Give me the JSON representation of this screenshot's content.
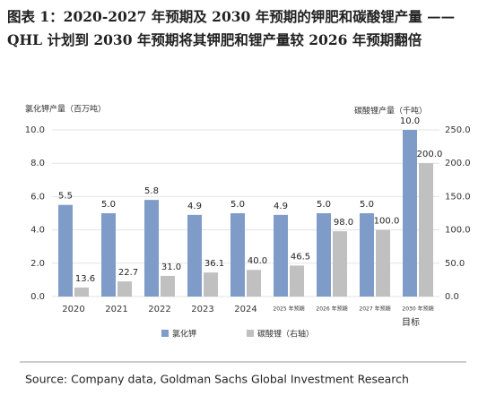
{
  "chart_data": {
    "type": "bar",
    "title": "图表 1：2020-2027 年预期及 2030 年预期的钾肥和碳酸锂产量 ——QHL 计划到 2030 年预期将其钾肥和锂产量较 2026 年预期翻倍",
    "y_label": "氯化钾产量（百万吨）",
    "y2_label": "碳酸锂产量（千吨）",
    "annotation": "目标",
    "source": "Source: Company data, Goldman Sachs Global Investment Research",
    "categories": [
      "2020",
      "2021",
      "2022",
      "2023",
      "2024",
      "2025 年预期",
      "2026 年预期",
      "2027 年预期",
      "2030 年预期"
    ],
    "series": [
      {
        "name": "氯化钾",
        "color": "#7f9cc9",
        "values": [
          5.5,
          5.0,
          5.8,
          4.9,
          5.0,
          4.9,
          5.0,
          5.0,
          10.0
        ],
        "value_labels": [
          "5.5",
          "5.0",
          "5.8",
          "4.9",
          "5.0",
          "4.9",
          "5.0",
          "5.0",
          "10.0"
        ]
      },
      {
        "name": "碳酸锂（右轴）",
        "color": "#c0c0c0",
        "axis": "y2",
        "values": [
          13.6,
          22.7,
          31.0,
          36.1,
          40.0,
          46.5,
          98.0,
          100.0,
          200.0
        ],
        "value_labels": [
          "13.6",
          "22.7",
          "31.0",
          "36.1",
          "40.0",
          "46.5",
          "98.0",
          "100.0",
          "200.0"
        ]
      }
    ],
    "ylim": [
      0,
      10
    ],
    "yticks": [
      {
        "value": 0,
        "label": "0.0"
      },
      {
        "value": 2,
        "label": "2.0"
      },
      {
        "value": 4,
        "label": "4.0"
      },
      {
        "value": 6,
        "label": "6.0"
      },
      {
        "value": 8,
        "label": "8.0"
      },
      {
        "value": 10,
        "label": "10.0"
      }
    ],
    "y2lim": [
      0,
      250
    ],
    "y2ticks": [
      {
        "value": 0,
        "label": "0.0"
      },
      {
        "value": 50,
        "label": "50.0"
      },
      {
        "value": 100,
        "label": "100.0"
      },
      {
        "value": 150,
        "label": "150.0"
      },
      {
        "value": 200,
        "label": "200.0"
      },
      {
        "value": 250,
        "label": "250.0"
      }
    ],
    "grid": true
  }
}
